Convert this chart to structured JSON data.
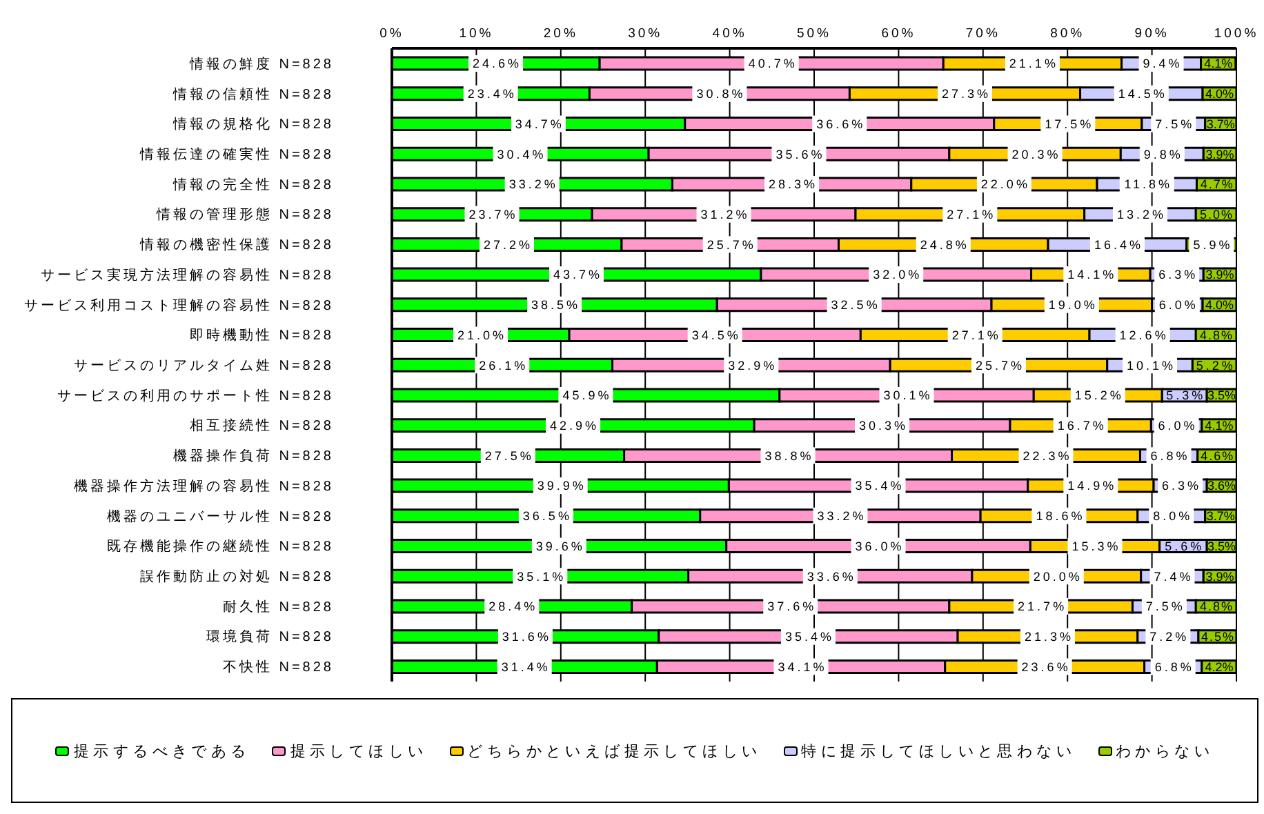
{
  "chart_data": {
    "type": "bar",
    "orientation": "horizontal",
    "stacked": true,
    "categories": [
      "情報の鮮度 N=828",
      "情報の信頼性 N=828",
      "情報の規格化 N=828",
      "情報伝達の確実性 N=828",
      "情報の完全性 N=828",
      "情報の管理形態 N=828",
      "情報の機密性保護 N=828",
      "サービス実現方法理解の容易性 N=828",
      "サービス利用コスト理解の容易性 N=828",
      "即時機動性 N=828",
      "サービスのリアルタイム姓 N=828",
      "サービスの利用のサポート性 N=828",
      "相互接続性 N=828",
      "機器操作負荷 N=828",
      "機器操作方法理解の容易性 N=828",
      "機器のユニバーサル性 N=828",
      "既存機能操作の継続性 N=828",
      "誤作動防止の対処 N=828",
      "耐久性 N=828",
      "環境負荷 N=828",
      "不快性 N=828"
    ],
    "series": [
      {
        "name": "提示するべきである",
        "color": "#00ff00",
        "values": [
          24.6,
          23.4,
          34.7,
          30.4,
          33.2,
          23.7,
          27.2,
          43.7,
          38.5,
          21.0,
          26.1,
          45.9,
          42.9,
          27.5,
          39.9,
          36.5,
          39.6,
          35.1,
          28.4,
          31.6,
          31.4
        ],
        "value_labels": [
          "24.6%",
          "23.4%",
          "34.7%",
          "30.4%",
          "33.2%",
          "23.7%",
          "27.2%",
          "43.7%",
          "38.5%",
          "21.0%",
          "26.1%",
          "45.9%",
          "42.9%",
          "27.5%",
          "39.9%",
          "36.5%",
          "39.6%",
          "35.1%",
          "28.4%",
          "31.6%",
          "31.4%"
        ]
      },
      {
        "name": "提示してほしい",
        "color": "#ff99cc",
        "values": [
          40.7,
          30.8,
          36.6,
          35.6,
          28.3,
          31.2,
          25.7,
          32.0,
          32.5,
          34.5,
          32.9,
          30.1,
          30.3,
          38.8,
          35.4,
          33.2,
          36.0,
          33.6,
          37.6,
          35.4,
          34.1
        ],
        "value_labels": [
          "40.7%",
          "30.8%",
          "36.6%",
          "35.6%",
          "28.3%",
          "31.2%",
          "25.7%",
          "32.0%",
          "32.5%",
          "34.5%",
          "32.9%",
          "30.1%",
          "30.3%",
          "38.8%",
          "35.4%",
          "33.2%",
          "36.0%",
          "33.6%",
          "37.6%",
          "35.4%",
          "34.1%"
        ]
      },
      {
        "name": "どちらかといえば提示してほしい",
        "color": "#ffcc00",
        "values": [
          21.1,
          27.3,
          17.5,
          20.3,
          22.0,
          27.1,
          24.8,
          14.1,
          19.0,
          27.1,
          25.7,
          15.2,
          16.7,
          22.3,
          14.9,
          18.6,
          15.3,
          20.0,
          21.7,
          21.3,
          23.6
        ],
        "value_labels": [
          "21.1%",
          "27.3%",
          "17.5%",
          "20.3%",
          "22.0%",
          "27.1%",
          "24.8%",
          "14.1%",
          "19.0%",
          "27.1%",
          "25.7%",
          "15.2%",
          "16.7%",
          "22.3%",
          "14.9%",
          "18.6%",
          "15.3%",
          "20.0%",
          "21.7%",
          "21.3%",
          "23.6%"
        ]
      },
      {
        "name": "特に提示してほしいと思わない",
        "color": "#ccccff",
        "values": [
          9.4,
          14.5,
          7.5,
          9.8,
          11.8,
          13.2,
          16.4,
          6.3,
          6.0,
          12.6,
          10.1,
          5.3,
          6.0,
          6.8,
          6.3,
          8.0,
          5.6,
          7.4,
          7.5,
          7.2,
          6.8
        ],
        "value_labels": [
          "9.4%",
          "14.5%",
          "7.5%",
          "9.8%",
          "11.8%",
          "13.2%",
          "16.4%",
          "6.3%",
          "6.0%",
          "12.6%",
          "10.1%",
          "5.3%",
          "6.0%",
          "6.8%",
          "6.3%",
          "8.0%",
          "5.6%",
          "7.4%",
          "7.5%",
          "7.2%",
          "6.8%"
        ]
      },
      {
        "name": "わからない",
        "color": "#99cc00",
        "values": [
          4.1,
          4.0,
          3.7,
          3.9,
          4.7,
          5.0,
          5.9,
          3.9,
          4.0,
          4.8,
          5.2,
          3.5,
          4.1,
          4.6,
          3.6,
          3.7,
          3.5,
          3.9,
          4.8,
          4.5,
          4.2
        ],
        "value_labels": [
          "4.1%",
          "4.0%",
          "3.7%",
          "3.9%",
          "4.7%",
          "5.0%",
          "5.9%",
          "3.9%",
          "4.0%",
          "4.8%",
          "5.2%",
          "3.5%",
          "4.1%",
          "4.6%",
          "3.6%",
          "3.7%",
          "3.5%",
          "3.9%",
          "4.8%",
          "4.5%",
          "4.2%"
        ]
      }
    ],
    "xlim": [
      0,
      100
    ],
    "xticks": [
      {
        "value": 0,
        "label": "0%"
      },
      {
        "value": 10,
        "label": "10%"
      },
      {
        "value": 20,
        "label": "20%"
      },
      {
        "value": 30,
        "label": "30%"
      },
      {
        "value": 40,
        "label": "40%"
      },
      {
        "value": 50,
        "label": "50%"
      },
      {
        "value": 60,
        "label": "60%"
      },
      {
        "value": 70,
        "label": "70%"
      },
      {
        "value": 80,
        "label": "80%"
      },
      {
        "value": 90,
        "label": "90%"
      },
      {
        "value": 100,
        "label": "100%"
      }
    ],
    "grid": "x",
    "legend": "bottom"
  }
}
